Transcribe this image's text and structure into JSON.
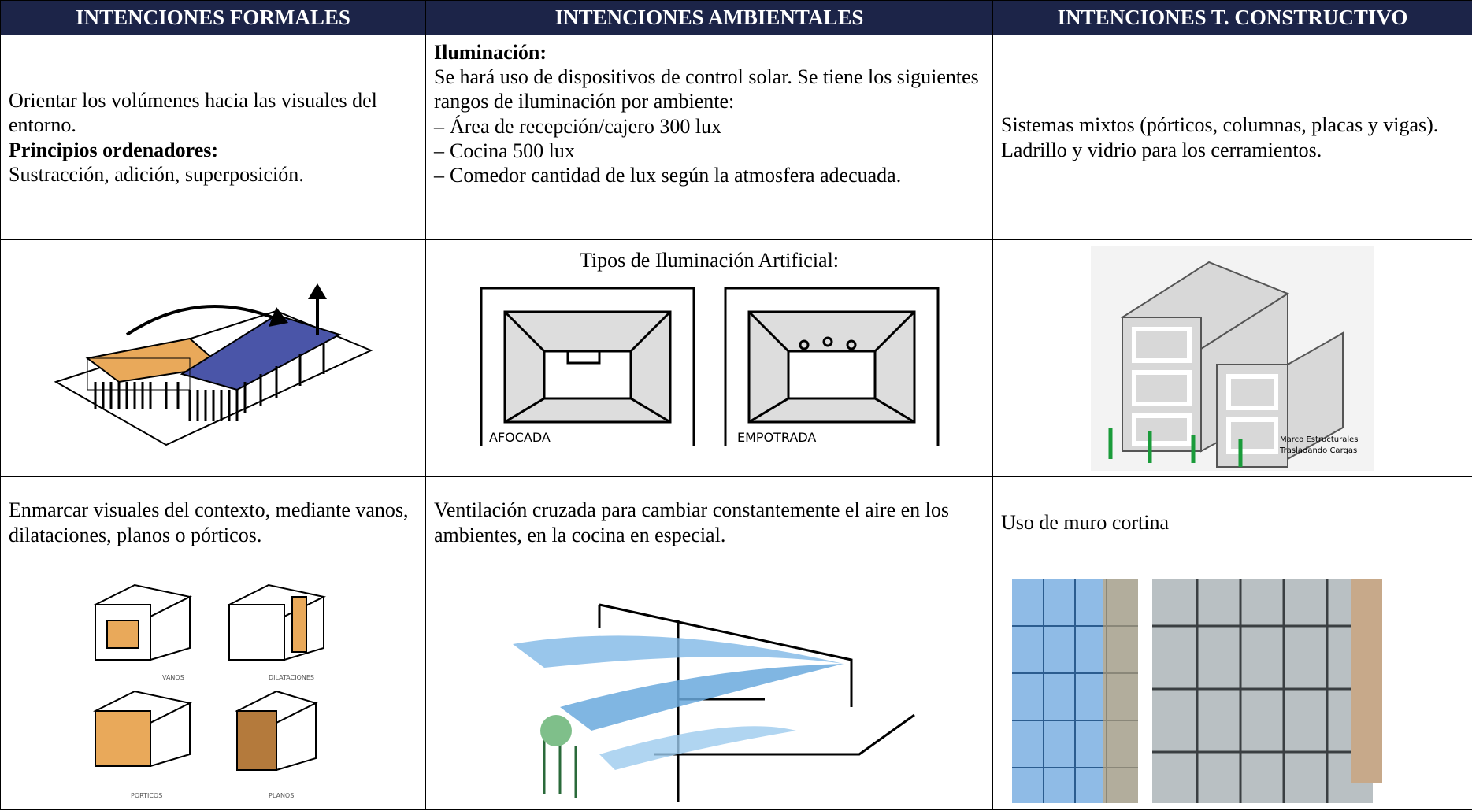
{
  "table": {
    "headers": [
      "INTENCIONES FORMALES",
      "INTENCIONES AMBIENTALES",
      "INTENCIONES T. CONSTRUCTIVO"
    ],
    "rows": [
      [
        {
          "text": "Orientar los volúmenes hacia las visuales del entorno.",
          "subheading": "Principios ordenadores:",
          "subtext": "Sustracción, adición, superposición."
        },
        {
          "heading": "Iluminación:",
          "text": "Se hará uso de dispositivos de control solar. Se tiene los siguientes rangos de iluminación por ambiente:",
          "items": [
            "Área de recepción/cajero 300 lux",
            "Cocina 500 lux",
            "Comedor cantidad de lux según la atmosfera adecuada."
          ]
        },
        {
          "paragraphs": [
            "Sistemas mixtos (pórticos, columnas, placas y vigas).",
            "Ladrillo y vidrio para los cerramientos."
          ]
        }
      ],
      [
        {},
        {
          "title": "Tipos de Iluminación Artificial:",
          "labels": [
            "AFOCADA",
            "EMPOTRADA"
          ]
        },
        {
          "labels": [
            "Marco Estructurales",
            "Trasladando Cargas"
          ]
        }
      ],
      [
        {
          "text": "Enmarcar visuales del contexto, mediante vanos, dilataciones, planos o pórticos."
        },
        {
          "text": "Ventilación cruzada para cambiar constantemente el aire en los ambientes, en la cocina en especial."
        },
        {
          "text": "Uso de muro cortina"
        }
      ],
      [
        {
          "labels": [
            "VANOS",
            "DILATACIONES",
            "PORTICOS",
            "PLANOS"
          ]
        },
        {},
        {}
      ]
    ]
  }
}
